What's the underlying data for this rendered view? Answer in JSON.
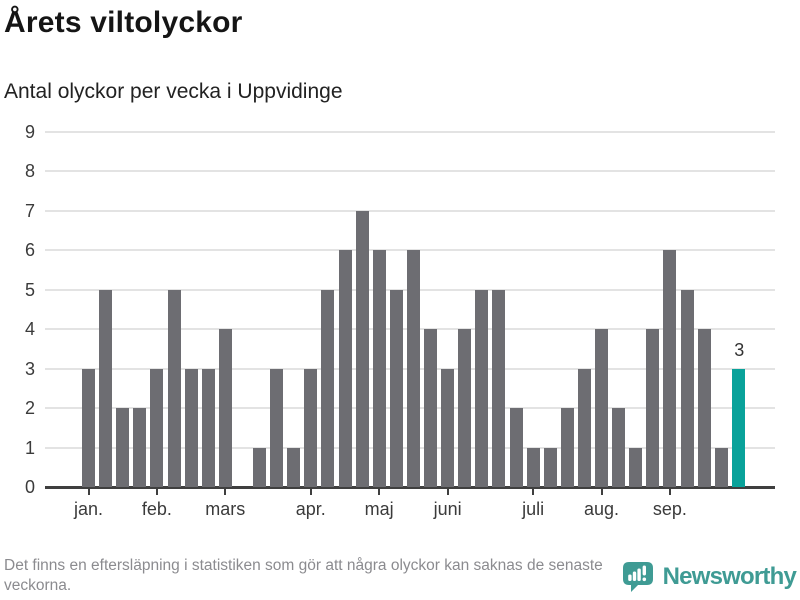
{
  "header": {
    "title": "Årets viltolyckor",
    "subtitle": "Antal olyckor per vecka i Uppvidinge"
  },
  "chart_data": {
    "type": "bar",
    "title": "Årets viltolyckor",
    "subtitle": "Antal olyckor per vecka i Uppvidinge",
    "x_description": "veckor, januari till september",
    "values": [
      3,
      5,
      2,
      2,
      3,
      5,
      3,
      3,
      4,
      0,
      1,
      3,
      1,
      3,
      5,
      6,
      7,
      6,
      5,
      6,
      4,
      3,
      4,
      5,
      5,
      2,
      1,
      1,
      2,
      3,
      4,
      2,
      1,
      4,
      6,
      5,
      4,
      1,
      3
    ],
    "y_ticks": [
      0,
      1,
      2,
      3,
      4,
      5,
      6,
      7,
      8,
      9
    ],
    "ylim": [
      0,
      9
    ],
    "grid": true,
    "month_ticks": [
      {
        "label": "jan.",
        "week_index": 0
      },
      {
        "label": "feb.",
        "week_index": 4
      },
      {
        "label": "mars",
        "week_index": 8
      },
      {
        "label": "apr.",
        "week_index": 13
      },
      {
        "label": "maj",
        "week_index": 17
      },
      {
        "label": "juni",
        "week_index": 21
      },
      {
        "label": "juli",
        "week_index": 26
      },
      {
        "label": "aug.",
        "week_index": 30
      },
      {
        "label": "sep.",
        "week_index": 34
      }
    ],
    "last_bar": {
      "value": 3,
      "label": "3",
      "highlighted": true
    },
    "colors": {
      "bar": "#6d6d72",
      "highlight": "#09a29a",
      "grid": "#e3e3e3",
      "axis": "#3f3f3f"
    }
  },
  "footer": {
    "note": "Det finns en eftersläpning i statistiken som gör att några olyckor kan saknas de senaste veckorna.",
    "brand": {
      "name": "Newsworthy",
      "color": "#3f9b94"
    }
  }
}
